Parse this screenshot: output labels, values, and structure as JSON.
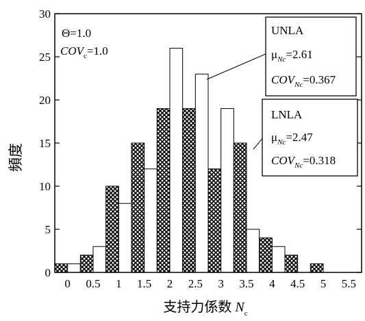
{
  "chart_data": {
    "type": "bar",
    "xlabel": "支持力係数",
    "xlabel_symbol": "N",
    "xlabel_sub": "c",
    "ylabel": "頻度",
    "xlim": [
      -0.25,
      5.75
    ],
    "ylim": [
      0,
      30
    ],
    "x_ticks": [
      "0",
      "0.5",
      "1",
      "1.5",
      "2",
      "2.5",
      "3",
      "3.5",
      "4",
      "4.5",
      "5",
      "5.5"
    ],
    "y_ticks": [
      "0",
      "5",
      "10",
      "15",
      "20",
      "25",
      "30"
    ],
    "bin_centers": [
      0,
      0.5,
      1,
      1.5,
      2,
      2.5,
      3,
      3.5,
      4,
      4.5,
      5,
      5.5
    ],
    "series": [
      {
        "name": "LNLA",
        "pattern": "crosshatch",
        "values": [
          1,
          2,
          10,
          15,
          19,
          19,
          12,
          15,
          4,
          2,
          1,
          0
        ]
      },
      {
        "name": "UNLA",
        "pattern": "white",
        "values": [
          1,
          3,
          8,
          12,
          26,
          23,
          19,
          5,
          3,
          0,
          0,
          0
        ]
      }
    ],
    "params": {
      "theta_symbol": "Θ",
      "theta_value": "=1.0",
      "cov_symbol": "COV",
      "cov_sub": "c",
      "cov_value": "=1.0"
    },
    "annotations": [
      {
        "label": "UNLA",
        "mu_symbol": "μ",
        "mu_sub": "Nc",
        "mu_value": "=2.61",
        "cov_symbol": "COV",
        "cov_sub": "Nc",
        "cov_value": "=0.367"
      },
      {
        "label": "LNLA",
        "mu_symbol": "μ",
        "mu_sub": "Nc",
        "mu_value": "=2.47",
        "cov_symbol": "COV",
        "cov_sub": "Nc",
        "cov_value": "=0.318"
      }
    ],
    "grid": false
  }
}
